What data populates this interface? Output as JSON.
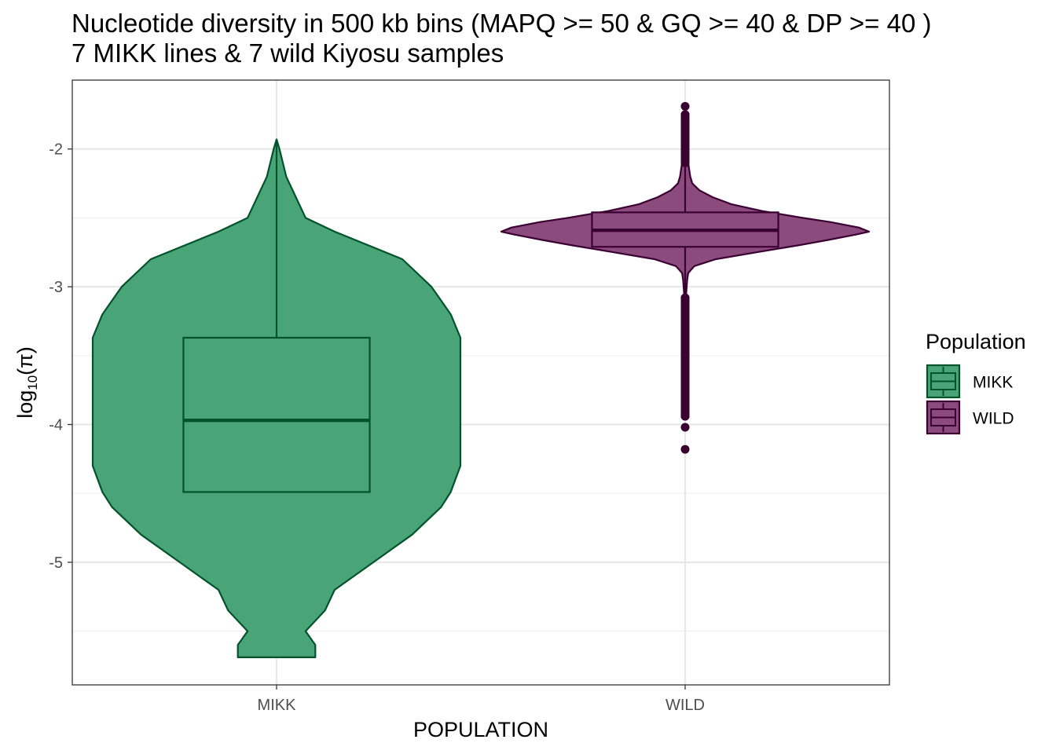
{
  "chart_data": {
    "type": "violin",
    "title": [
      "Nucleotide diversity in 500 kb bins (MAPQ >= 50 & GQ >= 40 & DP >= 40 )",
      "7 MIKK lines & 7 wild Kiyosu samples"
    ],
    "xlabel": "POPULATION",
    "ylabel": {
      "base": "log",
      "sub": "10",
      "rest": "(π)"
    },
    "categories": [
      "MIKK",
      "WILD"
    ],
    "ylim": [
      -5.89,
      -1.5
    ],
    "yticks": [
      -2,
      -3,
      -4,
      -5
    ],
    "ytick_labels": [
      "-2",
      "-3",
      "-4",
      "-5"
    ],
    "grid": true,
    "legend": {
      "title": "Population",
      "position": "right",
      "entries": [
        "MIKK",
        "WILD"
      ]
    },
    "series": [
      {
        "name": "MIKK",
        "fill": "#49a478",
        "stroke": "#02532a",
        "box": {
          "lower": -4.49,
          "q1": -4.49,
          "median": -3.97,
          "q3": -3.37,
          "upper": -1.93
        },
        "violin_profile": [
          [
            -5.69,
            0.04
          ],
          [
            -5.6,
            0.04
          ],
          [
            -5.5,
            0.03
          ],
          [
            -5.35,
            0.05
          ],
          [
            -5.2,
            0.06
          ],
          [
            -5.0,
            0.1
          ],
          [
            -4.8,
            0.14
          ],
          [
            -4.6,
            0.17
          ],
          [
            -4.49,
            0.18
          ],
          [
            -4.3,
            0.19
          ],
          [
            -4.0,
            0.19
          ],
          [
            -3.7,
            0.19
          ],
          [
            -3.4,
            0.19
          ],
          [
            -3.37,
            0.19
          ],
          [
            -3.2,
            0.18
          ],
          [
            -3.0,
            0.16
          ],
          [
            -2.8,
            0.13
          ],
          [
            -2.6,
            0.06
          ],
          [
            -2.5,
            0.03
          ],
          [
            -2.35,
            0.02
          ],
          [
            -2.2,
            0.01
          ],
          [
            -2.0,
            0.003
          ],
          [
            -1.93,
            0.0
          ]
        ],
        "outliers": []
      },
      {
        "name": "WILD",
        "fill": "#8b4b7c",
        "stroke": "#3b0032",
        "box": {
          "lower": -3.08,
          "q1": -2.71,
          "median": -2.59,
          "q3": -2.46,
          "upper": -1.84
        },
        "violin_profile": [
          [
            -3.12,
            0.01
          ],
          [
            -3.05,
            0.01
          ],
          [
            -2.95,
            0.02
          ],
          [
            -2.9,
            0.03
          ],
          [
            -2.85,
            0.09
          ],
          [
            -2.8,
            0.3
          ],
          [
            -2.75,
            0.7
          ],
          [
            -2.7,
            1.1
          ],
          [
            -2.66,
            1.4
          ],
          [
            -2.62,
            1.68
          ],
          [
            -2.6,
            1.8
          ],
          [
            -2.57,
            1.7
          ],
          [
            -2.53,
            1.42
          ],
          [
            -2.5,
            1.15
          ],
          [
            -2.45,
            0.75
          ],
          [
            -2.4,
            0.45
          ],
          [
            -2.35,
            0.27
          ],
          [
            -2.3,
            0.14
          ],
          [
            -2.25,
            0.07
          ],
          [
            -2.2,
            0.05
          ],
          [
            -2.1,
            0.03
          ],
          [
            -2.0,
            0.02
          ],
          [
            -1.9,
            0.01
          ],
          [
            -1.84,
            0.0
          ]
        ],
        "outliers": [
          -1.69,
          -1.75,
          -1.78,
          -1.8,
          -1.82,
          -1.85,
          -1.88,
          -1.9,
          -1.92,
          -1.95,
          -1.98,
          -2.0,
          -2.02,
          -2.05,
          -2.07,
          -2.1,
          -3.08,
          -3.12,
          -3.15,
          -3.2,
          -3.25,
          -3.3,
          -3.35,
          -3.4,
          -3.45,
          -3.5,
          -3.55,
          -3.6,
          -3.65,
          -3.7,
          -3.75,
          -3.8,
          -3.85,
          -3.9,
          -3.94,
          -4.02,
          -4.18
        ]
      }
    ]
  }
}
